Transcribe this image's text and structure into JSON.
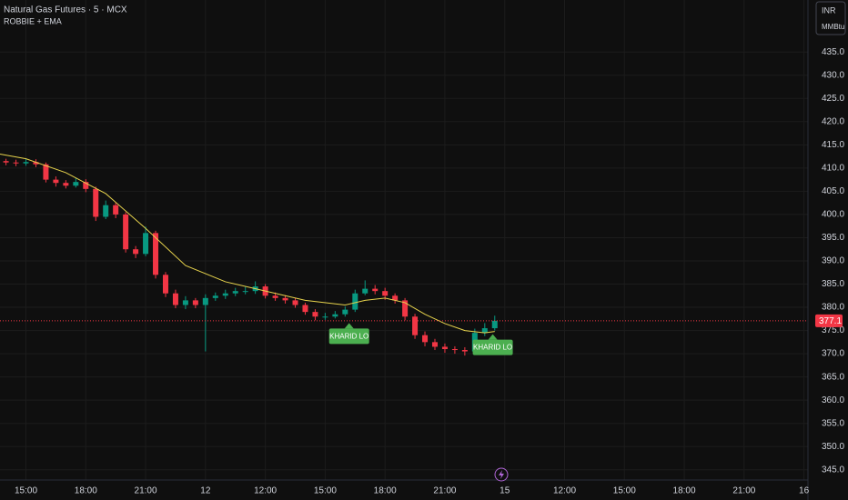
{
  "chart_data": {
    "type": "candlestick",
    "title": "Natural Gas Futures · 5 · MCX",
    "subtitle": "ROBBIE + EMA",
    "currency": "INR",
    "unit": "MMBtu",
    "up_color": "#089981",
    "down_color": "#f23645",
    "x": [
      -1.0,
      -0.5,
      0,
      0.5,
      1.0,
      1.5,
      2.0,
      2.5,
      3.0,
      3.5,
      4.0,
      4.5,
      5.0,
      5.5,
      6.0,
      6.5,
      7.0,
      7.5,
      8.0,
      8.5,
      9.0,
      9.5,
      10.0,
      10.5,
      11.0,
      11.5,
      12.0,
      12.5,
      13.0,
      13.5,
      14.0,
      14.5,
      15.0,
      15.5,
      16.0,
      16.5,
      17.0,
      17.5,
      18.0,
      18.5,
      19.0,
      19.5,
      20.0,
      20.5,
      21.0,
      21.5,
      22.0,
      22.5,
      23.0,
      23.5
    ],
    "open": [
      411.5,
      411.2,
      411.0,
      411.3,
      410.8,
      407.5,
      406.8,
      406.2,
      407.0,
      405.5,
      399.5,
      402.0,
      400.0,
      392.5,
      391.5,
      396.0,
      387.0,
      383.0,
      380.5,
      381.5,
      380.5,
      382.0,
      382.5,
      383.0,
      383.5,
      383.5,
      384.5,
      382.5,
      382.0,
      381.5,
      380.5,
      379.0,
      378.0,
      378.0,
      378.5,
      379.5,
      383.0,
      384.0,
      383.5,
      382.5,
      381.5,
      378.0,
      374.0,
      372.5,
      371.5,
      371.0,
      370.8,
      370.5,
      374.5,
      375.5
    ],
    "high": [
      412.0,
      411.8,
      412.0,
      411.9,
      411.2,
      408.2,
      407.4,
      407.8,
      407.6,
      406.0,
      403.0,
      402.6,
      400.5,
      393.2,
      397.4,
      396.5,
      387.6,
      383.8,
      382.4,
      382.0,
      382.8,
      383.2,
      383.8,
      384.2,
      384.4,
      385.6,
      385.0,
      383.2,
      382.6,
      382.0,
      381.0,
      379.6,
      378.8,
      379.2,
      380.2,
      383.8,
      385.8,
      384.8,
      384.2,
      383.0,
      382.0,
      378.6,
      374.8,
      373.2,
      372.2,
      371.6,
      371.4,
      375.4,
      376.6,
      378.2
    ],
    "low": [
      410.6,
      410.4,
      410.5,
      410.2,
      406.9,
      406.0,
      405.6,
      405.8,
      404.8,
      398.6,
      399.0,
      399.2,
      391.8,
      390.6,
      391.0,
      386.2,
      382.2,
      379.8,
      379.6,
      379.8,
      370.5,
      381.4,
      381.8,
      382.4,
      382.8,
      382.9,
      381.9,
      381.4,
      380.8,
      379.9,
      378.4,
      377.2,
      377.3,
      377.6,
      378.0,
      379.0,
      382.6,
      382.8,
      381.6,
      380.8,
      377.2,
      373.2,
      371.6,
      370.8,
      370.2,
      370.0,
      369.6,
      370.0,
      373.8,
      375.0
    ],
    "close": [
      411.2,
      411.0,
      411.3,
      410.8,
      407.5,
      406.8,
      406.2,
      407.0,
      405.5,
      399.5,
      402.0,
      400.0,
      392.5,
      391.5,
      396.0,
      387.0,
      383.0,
      380.5,
      381.5,
      380.5,
      382.0,
      382.5,
      383.0,
      383.5,
      383.5,
      384.5,
      382.5,
      382.0,
      381.5,
      380.5,
      379.0,
      378.0,
      378.0,
      378.5,
      379.5,
      383.0,
      384.0,
      383.5,
      382.5,
      381.5,
      378.0,
      374.0,
      372.5,
      371.5,
      371.0,
      370.8,
      370.5,
      374.5,
      375.5,
      377.1
    ],
    "ema": {
      "color": "#e8d44d",
      "x": [
        -1.3,
        0,
        2,
        4,
        6,
        8,
        10,
        12,
        14,
        16,
        17,
        18,
        19,
        20,
        21,
        22,
        23,
        23.5
      ],
      "values": [
        413,
        412,
        409,
        404.5,
        397,
        389,
        385.5,
        383.5,
        381.5,
        380.5,
        381.5,
        382,
        381,
        378.5,
        376.5,
        375,
        374.5,
        374.8
      ]
    },
    "last_price": {
      "value": 377.1,
      "label": "377.1",
      "color": "#f23645"
    },
    "annotations": [
      {
        "text": "KHARID LO",
        "x": 16.2,
        "y": 377.2
      },
      {
        "text": "KHARID LO",
        "x": 23.4,
        "y": 374.8
      }
    ],
    "xlim": [
      -1.3,
      39.2
    ],
    "xticks": [
      {
        "value": 0,
        "label": "15:00"
      },
      {
        "value": 3,
        "label": "18:00"
      },
      {
        "value": 6,
        "label": "21:00"
      },
      {
        "value": 9,
        "label": "12"
      },
      {
        "value": 12,
        "label": "12:00"
      },
      {
        "value": 15,
        "label": "15:00"
      },
      {
        "value": 18,
        "label": "18:00"
      },
      {
        "value": 21,
        "label": "21:00"
      },
      {
        "value": 24,
        "label": "15"
      },
      {
        "value": 27,
        "label": "12:00"
      },
      {
        "value": 30,
        "label": "15:00"
      },
      {
        "value": 33,
        "label": "18:00"
      },
      {
        "value": 36,
        "label": "21:00"
      },
      {
        "value": 39,
        "label": "16"
      }
    ],
    "ylim": [
      342.8,
      446.2
    ],
    "yticks": [
      {
        "value": 345,
        "label": "345.0"
      },
      {
        "value": 350,
        "label": "350.0"
      },
      {
        "value": 355,
        "label": "355.0"
      },
      {
        "value": 360,
        "label": "360.0"
      },
      {
        "value": 365,
        "label": "365.0"
      },
      {
        "value": 370,
        "label": "370.0"
      },
      {
        "value": 375,
        "label": "375.0"
      },
      {
        "value": 380,
        "label": "380.0"
      },
      {
        "value": 385,
        "label": "385.0"
      },
      {
        "value": 390,
        "label": "390.0"
      },
      {
        "value": 395,
        "label": "395.0"
      },
      {
        "value": 400,
        "label": "400.0"
      },
      {
        "value": 405,
        "label": "405.0"
      },
      {
        "value": 410,
        "label": "410.0"
      },
      {
        "value": 415,
        "label": "415.0"
      },
      {
        "value": 420,
        "label": "420.0"
      },
      {
        "value": 425,
        "label": "425.0"
      },
      {
        "value": 430,
        "label": "430.0"
      },
      {
        "value": 435,
        "label": "435.0"
      }
    ],
    "grid": true
  }
}
